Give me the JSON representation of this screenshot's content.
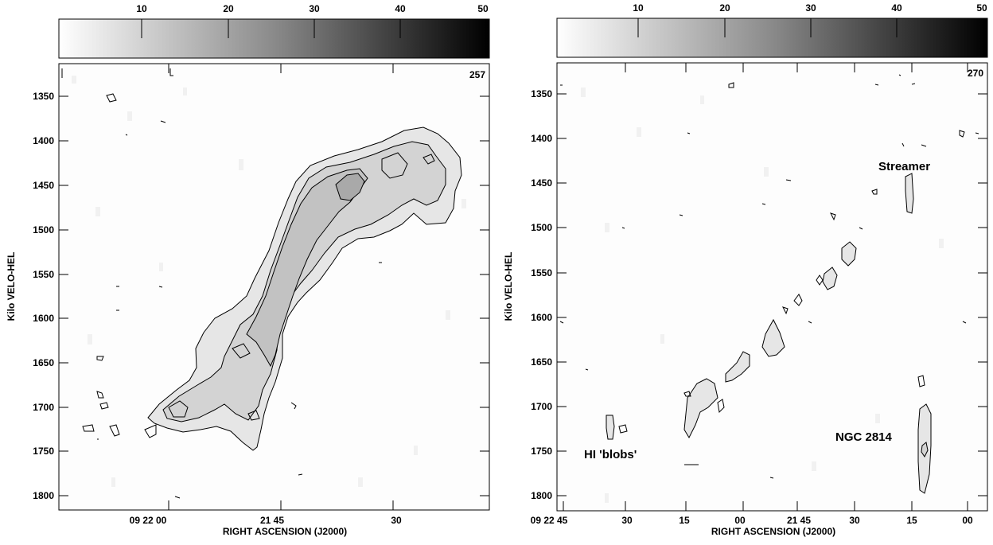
{
  "chart_data": [
    {
      "type": "heatmap",
      "title": "",
      "xlabel": "RIGHT ASCENSION (J2000)",
      "ylabel": "Kilo VELO-HEL",
      "colorbar": {
        "ticks": [
          "10",
          "20",
          "30",
          "40",
          "50"
        ],
        "range": [
          0,
          50
        ],
        "colors": [
          "#ffffff",
          "#000000"
        ]
      },
      "panel_label": "257",
      "x_ticks": [
        "09 22 00",
        "21 45",
        "30"
      ],
      "y_ticks": [
        "1350",
        "1400",
        "1450",
        "1500",
        "1550",
        "1600",
        "1650",
        "1700",
        "1750",
        "1800"
      ],
      "ylim": [
        1320,
        1820
      ],
      "annotations": []
    },
    {
      "type": "heatmap",
      "title": "",
      "xlabel": "RIGHT ASCENSION (J2000)",
      "ylabel": "Kilo VELO-HEL",
      "colorbar": {
        "ticks": [
          "10",
          "20",
          "30",
          "40",
          "50"
        ],
        "range": [
          0,
          50
        ],
        "colors": [
          "#ffffff",
          "#000000"
        ]
      },
      "panel_label": "270",
      "x_ticks": [
        "09 22 45",
        "30",
        "15",
        "00",
        "21 45",
        "30",
        "15",
        "00"
      ],
      "y_ticks": [
        "1350",
        "1400",
        "1450",
        "1500",
        "1550",
        "1600",
        "1650",
        "1700",
        "1750",
        "1800"
      ],
      "ylim": [
        1320,
        1820
      ],
      "annotations": [
        "Streamer",
        "HI 'blobs'",
        "NGC 2814"
      ]
    }
  ]
}
